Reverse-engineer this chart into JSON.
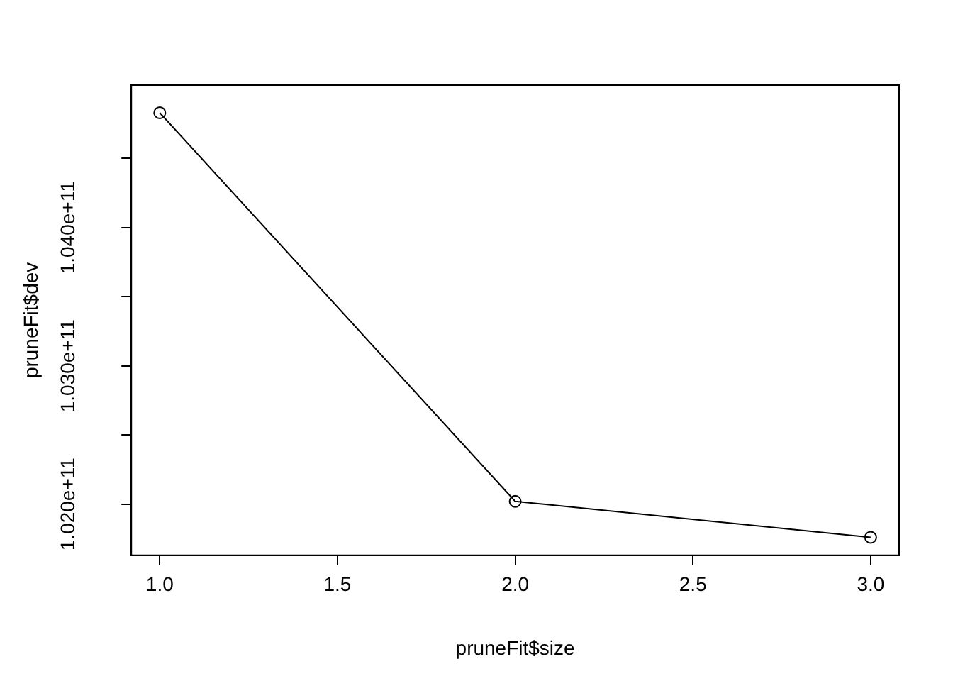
{
  "chart_data": {
    "type": "line",
    "xlabel": "pruneFit$size",
    "ylabel": "pruneFit$dev",
    "x": [
      1,
      2,
      3
    ],
    "values": [
      104830000000,
      102020000000,
      101760000000
    ],
    "color": "#000000",
    "marker": "circle",
    "line_style": "solid",
    "grid": false,
    "legend": false,
    "xlim": [
      0.92,
      3.08
    ],
    "xticks": [
      {
        "value": 1,
        "label": "1.0"
      },
      {
        "value": 1.5,
        "label": "1.5"
      },
      {
        "value": 2,
        "label": "2.0"
      },
      {
        "value": 2.5,
        "label": "2.5"
      },
      {
        "value": 3,
        "label": "3.0"
      }
    ],
    "ylim": [
      101630000000,
      105030000000
    ],
    "yticks": [
      {
        "value": 102000000000,
        "label": "1.020e+11"
      },
      {
        "value": 102500000000,
        "label": null
      },
      {
        "value": 103000000000,
        "label": "1.030e+11"
      },
      {
        "value": 103500000000,
        "label": null
      },
      {
        "value": 104000000000,
        "label": "1.040e+11"
      },
      {
        "value": 104500000000,
        "label": null
      }
    ]
  }
}
